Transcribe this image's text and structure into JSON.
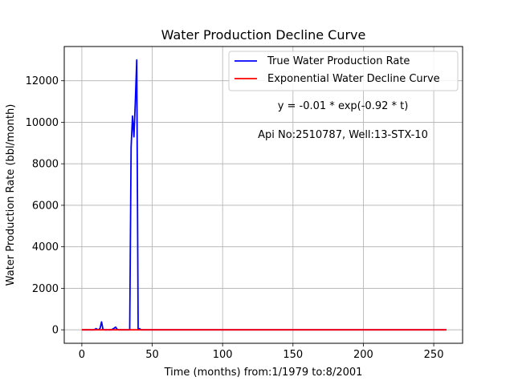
{
  "chart_data": {
    "type": "line",
    "title": "Water Production Decline Curve",
    "xlabel": "Time (months) from:1/1979 to:8/2001",
    "ylabel": "Water Production Rate (bbl/month)",
    "xlim": [
      -12.5,
      270.5
    ],
    "ylim": [
      -650,
      13650
    ],
    "xticks": [
      0,
      50,
      100,
      150,
      200,
      250
    ],
    "yticks": [
      0,
      2000,
      4000,
      6000,
      8000,
      10000,
      12000
    ],
    "grid": true,
    "legend_position": "top-right",
    "series": [
      {
        "name": "True Water Production Rate",
        "color": "#0000ff",
        "x": [
          0,
          1,
          2,
          3,
          4,
          5,
          6,
          7,
          8,
          9,
          10,
          11,
          12,
          13,
          14,
          15,
          16,
          17,
          18,
          19,
          20,
          21,
          22,
          23,
          24,
          25,
          26,
          27,
          28,
          29,
          30,
          31,
          32,
          33,
          34,
          35,
          36,
          37,
          38,
          39,
          40,
          41,
          42,
          43,
          44,
          45,
          50,
          60,
          70,
          80,
          100,
          150,
          200,
          250,
          259
        ],
        "y": [
          0,
          0,
          0,
          0,
          0,
          0,
          0,
          0,
          0,
          0,
          60,
          20,
          0,
          80,
          380,
          30,
          0,
          0,
          0,
          0,
          0,
          0,
          40,
          80,
          130,
          30,
          0,
          0,
          0,
          0,
          0,
          0,
          0,
          0,
          0,
          8800,
          10300,
          9300,
          11000,
          13000,
          0,
          60,
          0,
          0,
          0,
          0,
          0,
          0,
          0,
          0,
          0,
          0,
          0,
          0,
          0
        ]
      },
      {
        "name": "Exponential Water Decline Curve",
        "color": "#ff0000",
        "x": [
          0,
          259
        ],
        "y": [
          0,
          0
        ]
      }
    ],
    "annotations": [
      "y = -0.01 * exp(-0.92 * t)",
      "Api No:2510787, Well:13-STX-10"
    ]
  }
}
